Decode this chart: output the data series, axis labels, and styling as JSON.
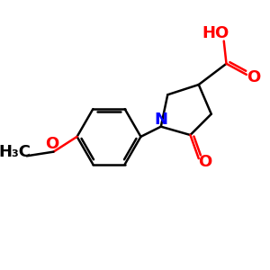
{
  "background_color": "#ffffff",
  "line_color": "#000000",
  "nitrogen_color": "#0000ff",
  "oxygen_color": "#ff0000",
  "line_width": 1.8,
  "font_size": 12,
  "figsize": [
    3.0,
    3.0
  ],
  "dpi": 100,
  "xlim": [
    0,
    300
  ],
  "ylim": [
    0,
    300
  ]
}
